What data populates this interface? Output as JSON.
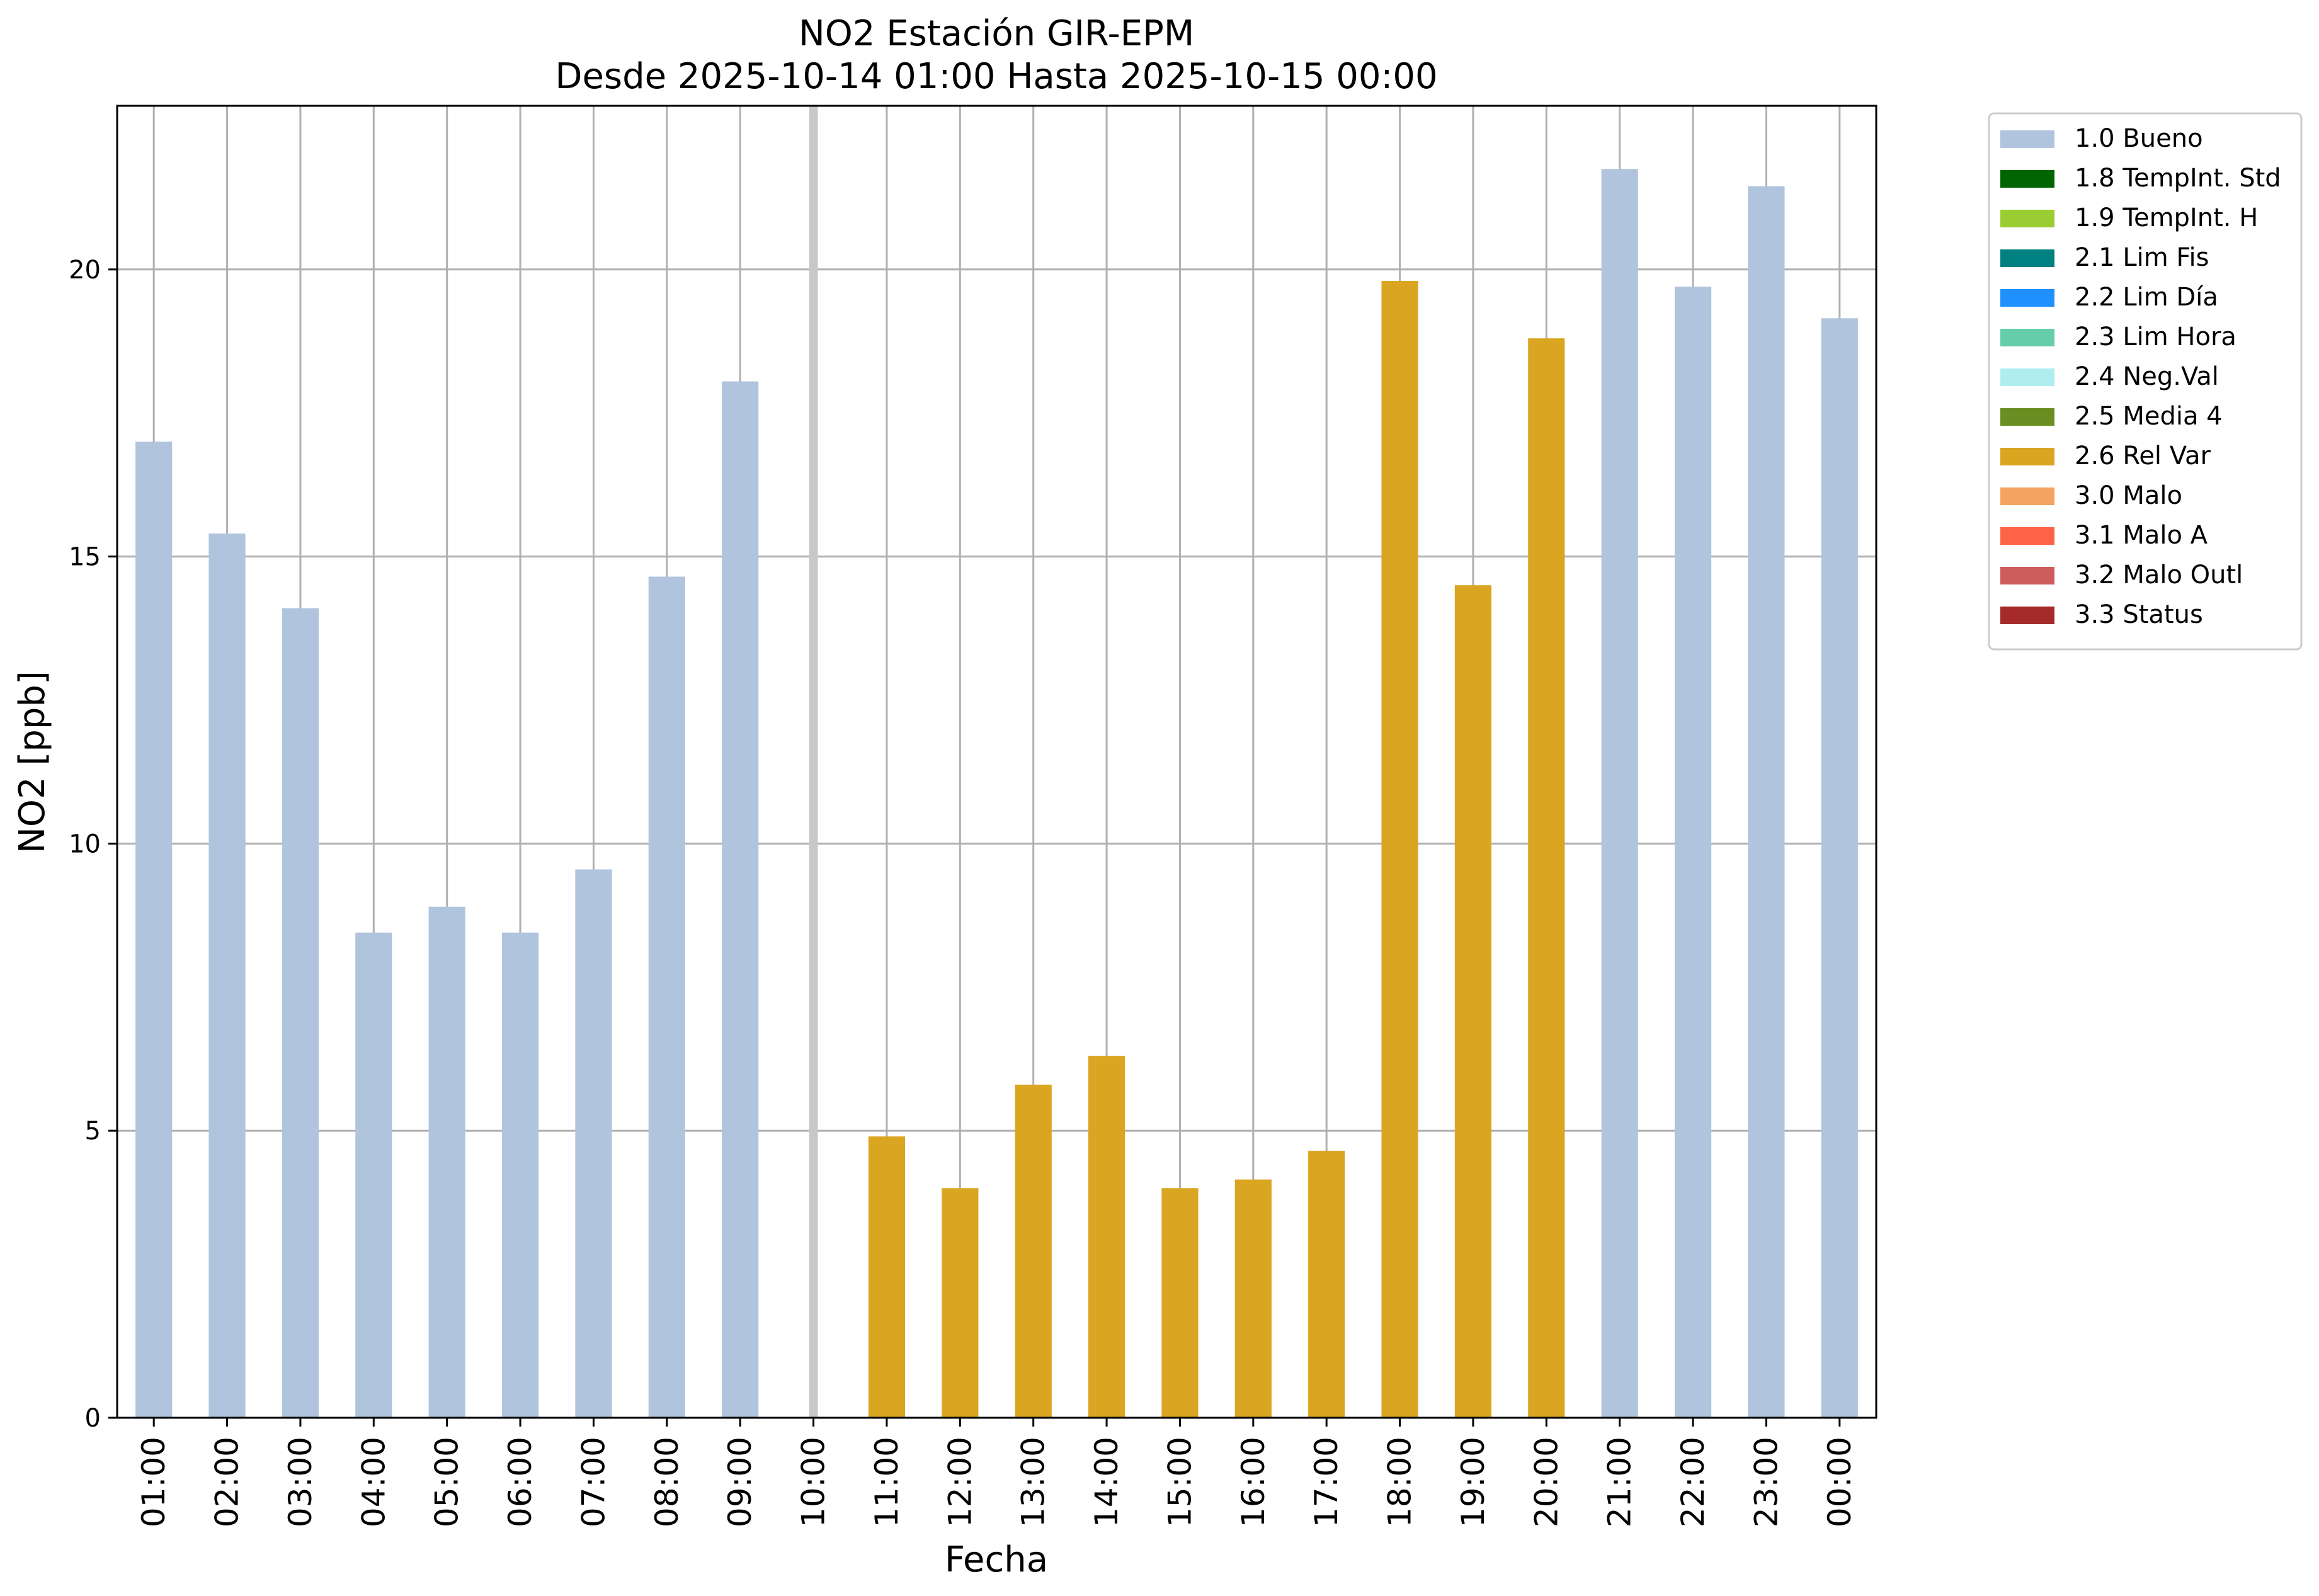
{
  "chart_data": {
    "type": "bar",
    "title": "NO2 Estación GIR-EPM",
    "subtitle": "Desde 2025-10-14 01:00 Hasta 2025-10-15 00:00",
    "xlabel": "Fecha",
    "ylabel": "NO2 [ppb]",
    "ylim": [
      0,
      22.85
    ],
    "yticks": [
      0,
      5,
      10,
      15,
      20
    ],
    "grid": true,
    "legend_position": "outside-top-right",
    "categories": [
      "01:00",
      "02:00",
      "03:00",
      "04:00",
      "05:00",
      "06:00",
      "07:00",
      "08:00",
      "09:00",
      "10:00",
      "11:00",
      "12:00",
      "13:00",
      "14:00",
      "15:00",
      "16:00",
      "17:00",
      "18:00",
      "19:00",
      "20:00",
      "21:00",
      "22:00",
      "23:00",
      "00:00"
    ],
    "values": [
      17.0,
      15.4,
      14.1,
      8.45,
      8.9,
      8.45,
      9.55,
      14.65,
      18.05,
      null,
      4.9,
      4.0,
      5.8,
      6.3,
      4.0,
      4.15,
      4.65,
      19.8,
      14.5,
      18.8,
      21.75,
      19.7,
      21.45,
      19.15
    ],
    "flags": [
      "1.0 Bueno",
      "1.0 Bueno",
      "1.0 Bueno",
      "1.0 Bueno",
      "1.0 Bueno",
      "1.0 Bueno",
      "1.0 Bueno",
      "1.0 Bueno",
      "1.0 Bueno",
      null,
      "2.6 Rel Var",
      "2.6 Rel Var",
      "2.6 Rel Var",
      "2.6 Rel Var",
      "2.6 Rel Var",
      "2.6 Rel Var",
      "2.6 Rel Var",
      "2.6 Rel Var",
      "2.6 Rel Var",
      "2.6 Rel Var",
      "1.0 Bueno",
      "1.0 Bueno",
      "1.0 Bueno",
      "1.0 Bueno"
    ],
    "missing_marker_category": "10:00",
    "legend": [
      {
        "label": "1.0 Bueno",
        "color": "#b0c4de"
      },
      {
        "label": "1.8 TempInt. Std",
        "color": "#006400"
      },
      {
        "label": "1.9 TempInt. H",
        "color": "#9acd32"
      },
      {
        "label": "2.1 Lim Fis",
        "color": "#008080"
      },
      {
        "label": "2.2 Lim Día",
        "color": "#1e90ff"
      },
      {
        "label": "2.3 Lim Hora",
        "color": "#66cdaa"
      },
      {
        "label": "2.4 Neg.Val",
        "color": "#afeeee"
      },
      {
        "label": "2.5 Media 4",
        "color": "#6b8e23"
      },
      {
        "label": "2.6 Rel Var",
        "color": "#daa520"
      },
      {
        "label": "3.0 Malo",
        "color": "#f4a460"
      },
      {
        "label": "3.1 Malo A",
        "color": "#ff6347"
      },
      {
        "label": "3.2 Malo Outl",
        "color": "#cd5c5c"
      },
      {
        "label": "3.3 Status",
        "color": "#a52a2a"
      }
    ]
  }
}
